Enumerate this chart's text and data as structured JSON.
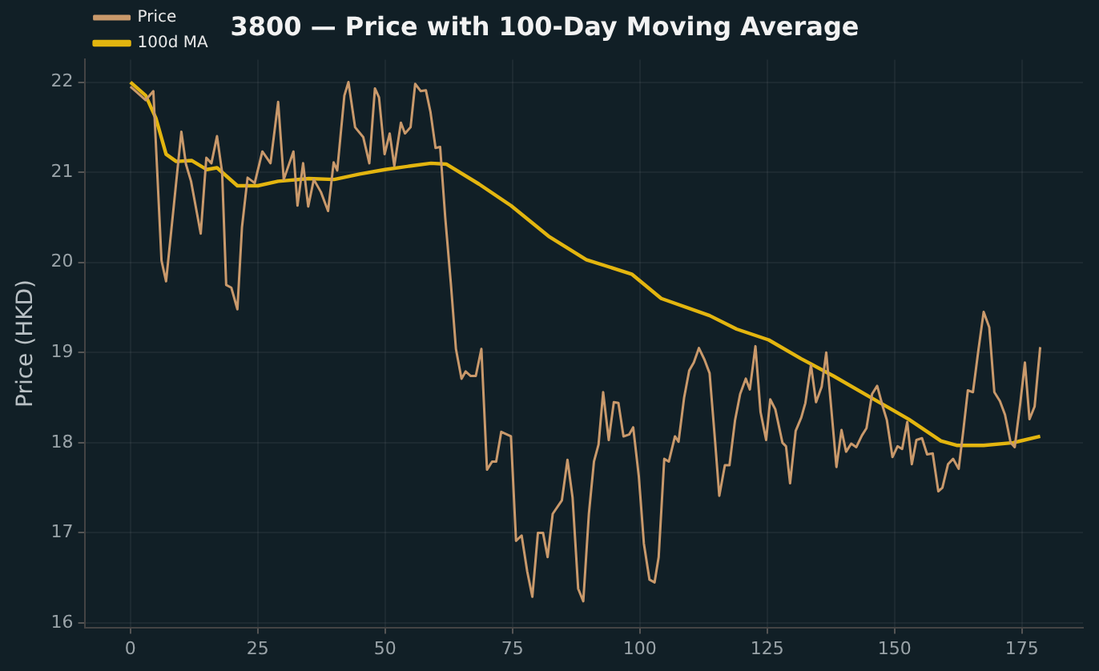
{
  "chart_data": {
    "type": "line",
    "title": "3800 — Price with 100-Day Moving Average",
    "ylabel": "Price (HKD)",
    "xlim": [
      -9,
      187
    ],
    "xticks": [
      0,
      25,
      50,
      75,
      100,
      125,
      150,
      175
    ],
    "ylim": [
      15.95,
      22.25
    ],
    "yticks": [
      16,
      17,
      18,
      19,
      20,
      21,
      22
    ],
    "grid": true,
    "legend": "top left",
    "marker": "none",
    "line_style": "solid",
    "series": [
      {
        "name": "Price",
        "color": "#c9996b",
        "x": [
          0,
          2,
          3,
          4.5,
          6.1,
          7,
          10,
          10.9,
          11.9,
          13.8,
          14.9,
          15.9,
          17,
          18,
          18.8,
          19.8,
          21,
          21.9,
          23,
          24.4,
          25.9,
          27.5,
          29,
          30.1,
          32,
          32.8,
          33.9,
          34.9,
          36,
          37.4,
          38.8,
          39.9,
          40.6,
          42,
          42.8,
          44.1,
          45.7,
          46.9,
          48,
          48.8,
          49.9,
          50.9,
          51.8,
          53.1,
          53.9,
          55,
          55.9,
          57,
          58,
          58.9,
          59.9,
          60.8,
          61.8,
          62.9,
          63.9,
          65,
          65.8,
          66.8,
          67.8,
          68.9,
          70,
          71,
          71.8,
          72.8,
          74.7,
          75.7,
          76.8,
          77.9,
          78.9,
          80,
          81,
          81.9,
          82.9,
          84.7,
          85.8,
          86.8,
          87.9,
          88.9,
          90,
          91,
          91.9,
          92.8,
          93.9,
          94.9,
          95.8,
          96.8,
          97.9,
          98.7,
          99.8,
          100.8,
          101.9,
          102.9,
          103.7,
          104.8,
          105.7,
          106.9,
          107.6,
          108.7,
          109.7,
          110.6,
          111.6,
          112.7,
          113.7,
          114.8,
          115.6,
          116.7,
          117.6,
          118.7,
          119.7,
          120.8,
          121.6,
          122.7,
          123.7,
          124.8,
          125.6,
          126.6,
          128,
          128.7,
          129.5,
          130.6,
          131.7,
          132.5,
          133.6,
          134.6,
          135.7,
          136.6,
          137.6,
          138.6,
          139.6,
          140.5,
          141.5,
          142.5,
          143.6,
          144.5,
          145.6,
          146.6,
          147.7,
          148.5,
          149.6,
          150.6,
          151.5,
          152.5,
          153.4,
          154.3,
          155.4,
          156.4,
          157.5,
          158.6,
          159.4,
          160.5,
          161.5,
          162.6,
          163.5,
          164.4,
          165.4,
          166.5,
          167.5,
          168.6,
          169.6,
          170.7,
          171.7,
          172.8,
          173.6,
          174.7,
          175.6,
          176.5,
          177.5,
          178.6
        ],
        "values": [
          21.95,
          21.85,
          21.8,
          21.9,
          20.02,
          19.79,
          21.45,
          21.09,
          20.9,
          20.32,
          21.16,
          21.1,
          21.4,
          21.0,
          19.75,
          19.72,
          19.48,
          20.39,
          20.94,
          20.88,
          21.23,
          21.1,
          21.78,
          20.92,
          21.23,
          20.63,
          21.1,
          20.62,
          20.92,
          20.78,
          20.57,
          21.11,
          21.02,
          21.85,
          22.0,
          21.5,
          21.39,
          21.1,
          21.93,
          21.83,
          21.2,
          21.43,
          21.07,
          21.55,
          21.43,
          21.5,
          21.98,
          21.9,
          21.91,
          21.67,
          21.27,
          21.28,
          20.5,
          19.77,
          19.04,
          18.71,
          18.79,
          18.74,
          18.74,
          19.04,
          17.7,
          17.79,
          17.79,
          18.12,
          18.07,
          16.91,
          16.97,
          16.57,
          16.29,
          17.0,
          17.0,
          16.73,
          17.21,
          17.36,
          17.81,
          17.39,
          16.38,
          16.24,
          17.21,
          17.79,
          17.98,
          18.56,
          18.03,
          18.45,
          18.44,
          18.07,
          18.09,
          18.17,
          17.63,
          16.88,
          16.48,
          16.45,
          16.73,
          17.82,
          17.79,
          18.07,
          18.01,
          18.5,
          18.8,
          18.89,
          19.05,
          18.92,
          18.77,
          18.0,
          17.41,
          17.75,
          17.75,
          18.25,
          18.54,
          18.71,
          18.59,
          19.07,
          18.34,
          18.03,
          18.48,
          18.37,
          18.0,
          17.96,
          17.55,
          18.13,
          18.28,
          18.44,
          18.86,
          18.45,
          18.62,
          19.0,
          18.37,
          17.73,
          18.14,
          17.9,
          17.99,
          17.95,
          18.08,
          18.16,
          18.54,
          18.63,
          18.4,
          18.25,
          17.84,
          17.96,
          17.93,
          18.23,
          17.76,
          18.03,
          18.05,
          17.87,
          17.88,
          17.46,
          17.5,
          17.76,
          17.82,
          17.71,
          18.13,
          18.58,
          18.56,
          19.04,
          19.45,
          19.28,
          18.56,
          18.46,
          18.31,
          18.0,
          17.95,
          18.44,
          18.89,
          18.26,
          18.4,
          19.06
        ]
      },
      {
        "name": "100d MA",
        "color": "#e3b50f",
        "x": [
          0,
          3,
          5,
          7,
          9,
          12,
          15,
          17,
          19,
          21,
          25,
          29,
          35,
          40,
          45,
          50,
          55,
          59,
          62,
          68.4,
          74.7,
          82.1,
          89.5,
          98.4,
          104.2,
          113.7,
          119,
          125.3,
          131.7,
          138,
          145.4,
          152.8,
          159.1,
          162.2,
          167.5,
          173.3,
          178.6
        ],
        "values": [
          22.0,
          21.85,
          21.6,
          21.2,
          21.12,
          21.13,
          21.03,
          21.05,
          20.95,
          20.85,
          20.85,
          20.9,
          20.93,
          20.92,
          20.98,
          21.03,
          21.07,
          21.1,
          21.09,
          20.87,
          20.63,
          20.29,
          20.03,
          19.87,
          19.6,
          19.41,
          19.26,
          19.14,
          18.93,
          18.74,
          18.5,
          18.26,
          18.02,
          17.97,
          17.97,
          18.0,
          18.07
        ]
      }
    ]
  }
}
